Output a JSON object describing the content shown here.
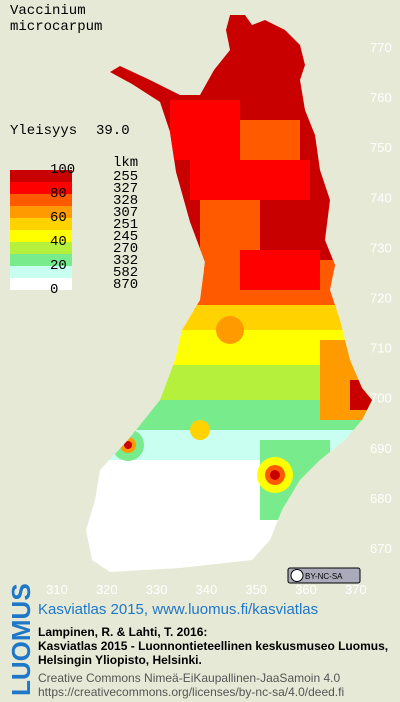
{
  "title": [
    "Vaccinium",
    "microcarpum"
  ],
  "frequency": {
    "label": "Yleisyys",
    "value": "39.0"
  },
  "legend": {
    "header": "lkm",
    "boundaries": [
      "100",
      "80",
      "60",
      "40",
      "20",
      "0"
    ],
    "classes": [
      {
        "color": "#c80000",
        "count": "255"
      },
      {
        "color": "#ff0000",
        "count": "327"
      },
      {
        "color": "#ff5a00",
        "count": "328"
      },
      {
        "color": "#ff9b00",
        "count": "307"
      },
      {
        "color": "#ffd200",
        "count": "251"
      },
      {
        "color": "#ffff00",
        "count": "245"
      },
      {
        "color": "#b4f03c",
        "count": "270"
      },
      {
        "color": "#78eb8c",
        "count": "332"
      },
      {
        "color": "#c8fff0",
        "count": "582"
      },
      {
        "color": "#ffffff",
        "count": "870"
      }
    ]
  },
  "grid_north": [
    "770",
    "760",
    "750",
    "740",
    "730",
    "720",
    "710",
    "700",
    "690",
    "680",
    "670"
  ],
  "grid_east": [
    "310",
    "320",
    "330",
    "340",
    "350",
    "360",
    "370"
  ],
  "license_badge": "BY-NC-SA",
  "footer": {
    "logo": "LUOMUS",
    "heading": "Kasviatlas 2015, www.luomus.fi/kasviatlas",
    "citation": [
      "Lampinen, R. & Lahti, T. 2016:",
      "Kasviatlas 2015 - Luonnontieteellinen keskusmuseo Luomus,",
      "Helsingin Yliopisto, Helsinki."
    ],
    "license": [
      "Creative Commons Nimeä-EiKaupallinen-JaaSamoin 4.0",
      "https://creativecommons.org/licenses/by-nc-sa/4.0/deed.fi"
    ]
  }
}
